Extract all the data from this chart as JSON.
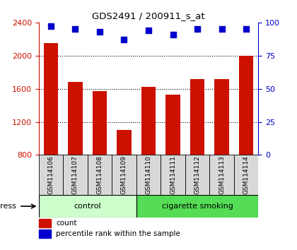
{
  "title": "GDS2491 / 200911_s_at",
  "samples": [
    "GSM114106",
    "GSM114107",
    "GSM114108",
    "GSM114109",
    "GSM114110",
    "GSM114111",
    "GSM114112",
    "GSM114113",
    "GSM114114"
  ],
  "counts": [
    2150,
    1680,
    1570,
    1100,
    1620,
    1530,
    1720,
    1720,
    2000
  ],
  "percentiles": [
    97,
    95,
    93,
    87,
    94,
    91,
    95,
    95,
    95
  ],
  "ylim_left": [
    800,
    2400
  ],
  "ylim_right": [
    0,
    100
  ],
  "yticks_left": [
    800,
    1200,
    1600,
    2000,
    2400
  ],
  "yticks_right": [
    0,
    25,
    50,
    75,
    100
  ],
  "grid_lines": [
    1200,
    1600,
    2000
  ],
  "bar_color": "#cc1100",
  "dot_color": "#0000cc",
  "bar_width": 0.6,
  "label_color_left": "#cc1100",
  "label_color_right": "#0000cc",
  "ctrl_color": "#ccffcc",
  "smoke_color": "#55dd55",
  "label_box_color": "#d8d8d8",
  "stress_label": "stress",
  "group_label_control": "control",
  "group_label_smoking": "cigarette smoking",
  "legend_count": "count",
  "legend_pct": "percentile rank within the sample",
  "n_control": 4,
  "n_smoking": 5
}
